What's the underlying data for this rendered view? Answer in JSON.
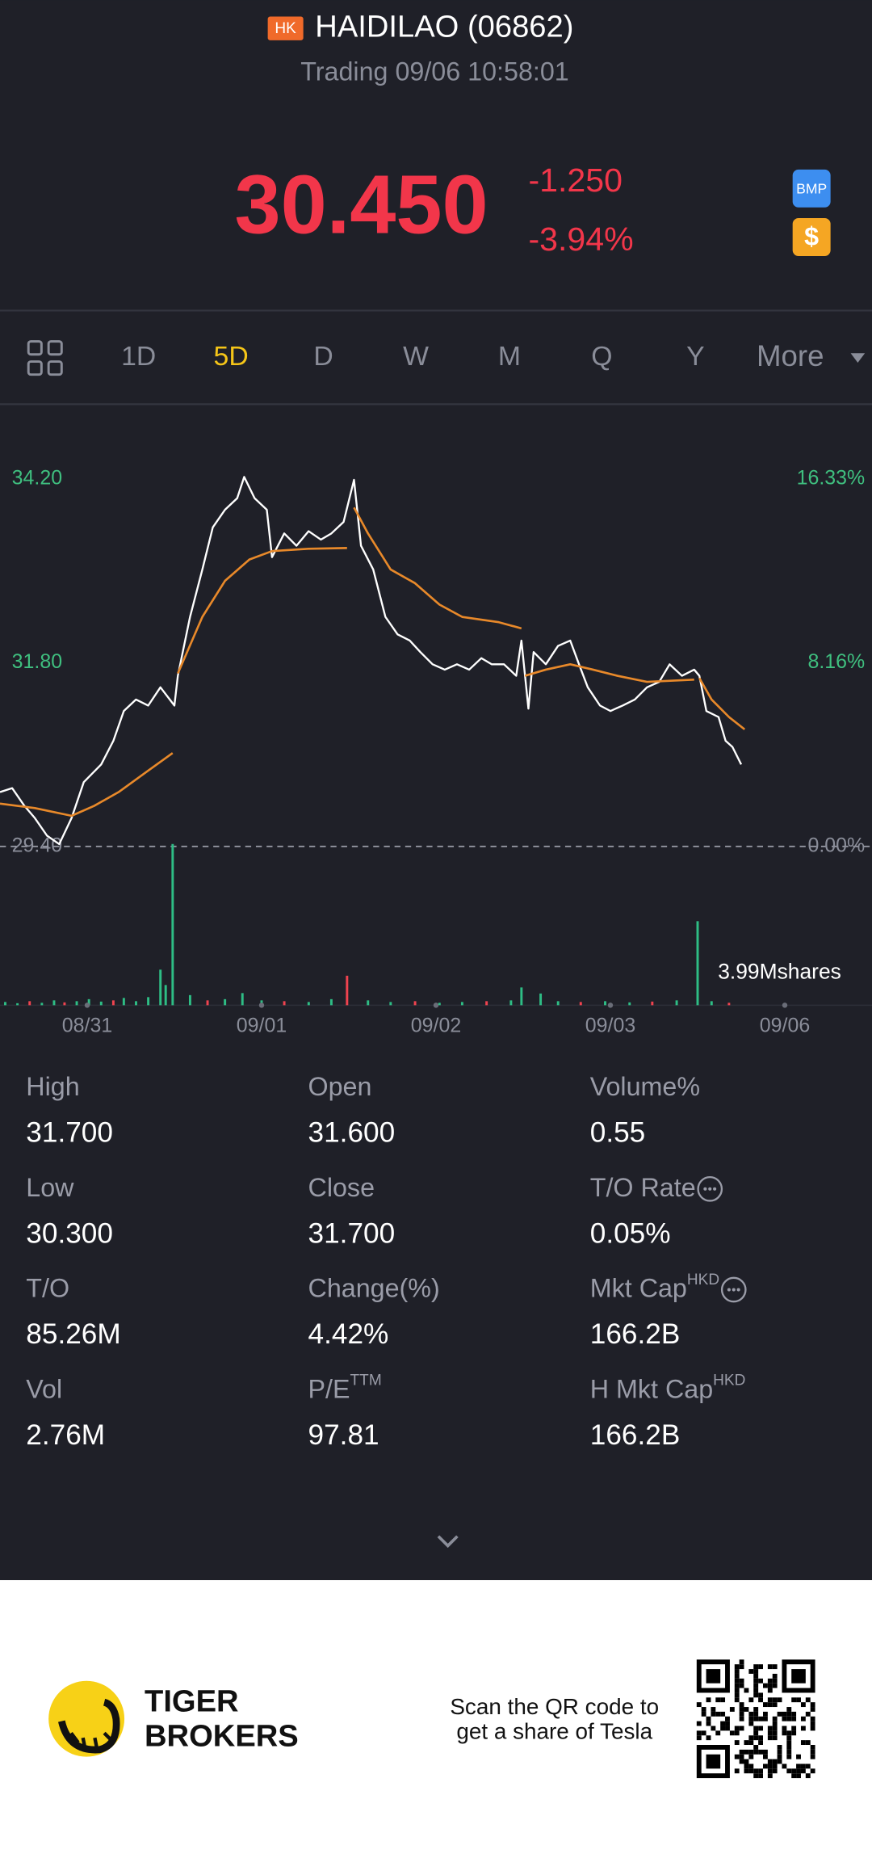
{
  "header": {
    "badge": "HK",
    "name": "HAIDILAO (06862)",
    "status": "Trading 09/06 10:58:01"
  },
  "quote": {
    "price": "30.450",
    "change": "-1.250",
    "change_pct": "-3.94%",
    "badges": [
      "BMP",
      "$"
    ]
  },
  "tabs": {
    "items": [
      "1D",
      "5D",
      "D",
      "W",
      "M",
      "Q",
      "Y",
      "More"
    ],
    "active": 1
  },
  "chart_data": {
    "type": "line",
    "xlim": [
      0,
      5
    ],
    "xticks": [
      {
        "value": 0.5,
        "label": "08/31"
      },
      {
        "value": 1.5,
        "label": "09/01"
      },
      {
        "value": 2.5,
        "label": "09/02"
      },
      {
        "value": 3.5,
        "label": "09/03"
      },
      {
        "value": 4.5,
        "label": "09/06"
      }
    ],
    "ylim": [
      29.4,
      34.42
    ],
    "yticks": [
      {
        "value": 29.4,
        "label": "29.40"
      },
      {
        "value": 31.8,
        "label": "31.80"
      },
      {
        "value": 34.2,
        "label": "34.20"
      }
    ],
    "y2lim": [
      0,
      17.07
    ],
    "y2ticks": [
      {
        "value": 0,
        "label": "0.00%"
      },
      {
        "value": 8.16,
        "label": "8.16%"
      },
      {
        "value": 16.33,
        "label": "16.33%"
      }
    ],
    "x": [
      0,
      0.07,
      0.14,
      0.2,
      0.27,
      0.34,
      0.41,
      0.48,
      0.58,
      0.65,
      0.71,
      0.78,
      0.85,
      0.92,
      1.0,
      1.02,
      1.09,
      1.16,
      1.22,
      1.29,
      1.36,
      1.4,
      1.46,
      1.53,
      1.56,
      1.63,
      1.7,
      1.77,
      1.84,
      1.9,
      1.97,
      2.03,
      2.07,
      2.14,
      2.21,
      2.28,
      2.35,
      2.41,
      2.48,
      2.55,
      2.62,
      2.69,
      2.76,
      2.82,
      2.89,
      2.96,
      2.99,
      3.03,
      3.06,
      3.13,
      3.2,
      3.27,
      3.32,
      3.37,
      3.44,
      3.5,
      3.57,
      3.64,
      3.71,
      3.78,
      3.84,
      3.91,
      3.98,
      4.01,
      4.05,
      4.12,
      4.16,
      4.2,
      4.25
    ],
    "series": [
      {
        "color": "#ffffff",
        "values": [
          30.11,
          30.16,
          29.93,
          29.77,
          29.54,
          29.43,
          29.77,
          30.24,
          30.47,
          30.78,
          31.17,
          31.32,
          31.24,
          31.48,
          31.24,
          31.63,
          32.4,
          33.02,
          33.57,
          33.8,
          33.95,
          34.23,
          33.95,
          33.8,
          33.18,
          33.49,
          33.33,
          33.52,
          33.41,
          33.49,
          33.64,
          34.19,
          33.33,
          33.02,
          32.4,
          32.17,
          32.09,
          31.94,
          31.78,
          31.71,
          31.78,
          31.71,
          31.86,
          31.78,
          31.78,
          31.63,
          32.09,
          31.2,
          31.94,
          31.78,
          32.02,
          32.09,
          31.78,
          31.48,
          31.24,
          31.17,
          31.24,
          31.32,
          31.48,
          31.55,
          31.78,
          31.63,
          31.71,
          31.63,
          31.17,
          31.09,
          30.78,
          30.7,
          30.47
        ]
      },
      {
        "color": "#e8892a",
        "x": [
          0,
          0.2,
          0.41,
          0.54,
          0.68,
          0.85,
          0.99,
          1.0,
          1.02,
          1.16,
          1.29,
          1.43,
          1.56,
          1.77,
          1.99,
          2.0,
          2.03,
          2.11,
          2.24,
          2.38,
          2.52,
          2.65,
          2.86,
          2.99,
          3.0,
          3.01,
          3.13,
          3.27,
          3.4,
          3.54,
          3.71,
          3.98,
          4.0,
          4.01,
          4.08,
          4.18,
          4.27
        ],
        "values": [
          29.96,
          29.9,
          29.8,
          29.93,
          30.11,
          30.39,
          30.62,
          null,
          31.66,
          32.4,
          32.87,
          33.15,
          33.26,
          33.29,
          33.3,
          null,
          33.83,
          33.49,
          33.02,
          32.84,
          32.56,
          32.4,
          32.33,
          32.25,
          null,
          31.63,
          31.71,
          31.78,
          31.71,
          31.63,
          31.55,
          31.58,
          null,
          31.6,
          31.32,
          31.09,
          30.93
        ]
      }
    ],
    "volume": {
      "label": "3.99Mshares",
      "ylim": [
        0,
        3.99
      ],
      "x": [
        0.03,
        0.1,
        0.17,
        0.24,
        0.31,
        0.37,
        0.44,
        0.51,
        0.58,
        0.65,
        0.71,
        0.78,
        0.85,
        0.92,
        0.95,
        0.99,
        1.09,
        1.19,
        1.29,
        1.39,
        1.5,
        1.63,
        1.77,
        1.9,
        1.99,
        2.11,
        2.24,
        2.38,
        2.52,
        2.65,
        2.79,
        2.93,
        2.99,
        3.1,
        3.2,
        3.33,
        3.47,
        3.61,
        3.74,
        3.88,
        4.0,
        4.08,
        4.18
      ],
      "values": [
        0.08,
        0.05,
        0.1,
        0.06,
        0.12,
        0.07,
        0.1,
        0.15,
        0.09,
        0.12,
        0.18,
        0.1,
        0.2,
        0.88,
        0.5,
        3.99,
        0.25,
        0.12,
        0.15,
        0.3,
        0.12,
        0.1,
        0.08,
        0.15,
        0.73,
        0.12,
        0.08,
        0.1,
        0.06,
        0.08,
        0.1,
        0.12,
        0.44,
        0.29,
        0.1,
        0.08,
        0.1,
        0.07,
        0.09,
        0.12,
        2.08,
        0.1,
        0.06
      ],
      "colors": [
        "#2ebd85",
        "#2ebd85",
        "#f0434f",
        "#2ebd85",
        "#2ebd85",
        "#f0434f",
        "#2ebd85",
        "#2ebd85",
        "#2ebd85",
        "#f0434f",
        "#2ebd85",
        "#2ebd85",
        "#2ebd85",
        "#2ebd85",
        "#2ebd85",
        "#2ebd85",
        "#2ebd85",
        "#f0434f",
        "#2ebd85",
        "#2ebd85",
        "#2ebd85",
        "#f0434f",
        "#2ebd85",
        "#2ebd85",
        "#f0434f",
        "#2ebd85",
        "#2ebd85",
        "#f0434f",
        "#2ebd85",
        "#2ebd85",
        "#f0434f",
        "#2ebd85",
        "#2ebd85",
        "#2ebd85",
        "#2ebd85",
        "#f0434f",
        "#2ebd85",
        "#2ebd85",
        "#f0434f",
        "#2ebd85",
        "#2ebd85",
        "#2ebd85",
        "#f0434f"
      ]
    }
  },
  "stats": {
    "rows": [
      [
        {
          "label": "High",
          "value": "31.700"
        },
        {
          "label": "Open",
          "value": "31.600"
        },
        {
          "label": "Volume%",
          "value": "0.55"
        }
      ],
      [
        {
          "label": "Low",
          "value": "30.300"
        },
        {
          "label": "Close",
          "value": "31.700"
        },
        {
          "label": "T/O Rate",
          "value": "0.05%",
          "info": true
        }
      ],
      [
        {
          "label": "T/O",
          "value": "85.26M"
        },
        {
          "label": "Change(%)",
          "value": "4.42%"
        },
        {
          "label": "Mkt Cap",
          "sup": "HKD",
          "value": "166.2B",
          "info": true
        }
      ],
      [
        {
          "label": "Vol",
          "value": "2.76M"
        },
        {
          "label": "P/E",
          "sup": "TTM",
          "value": "97.81"
        },
        {
          "label": "H Mkt Cap",
          "sup": "HKD",
          "value": "166.2B"
        }
      ]
    ]
  },
  "footer": {
    "brand": [
      "TIGER",
      "BROKERS"
    ],
    "promo": [
      "Scan the QR code to",
      "get a share of Tesla"
    ]
  }
}
